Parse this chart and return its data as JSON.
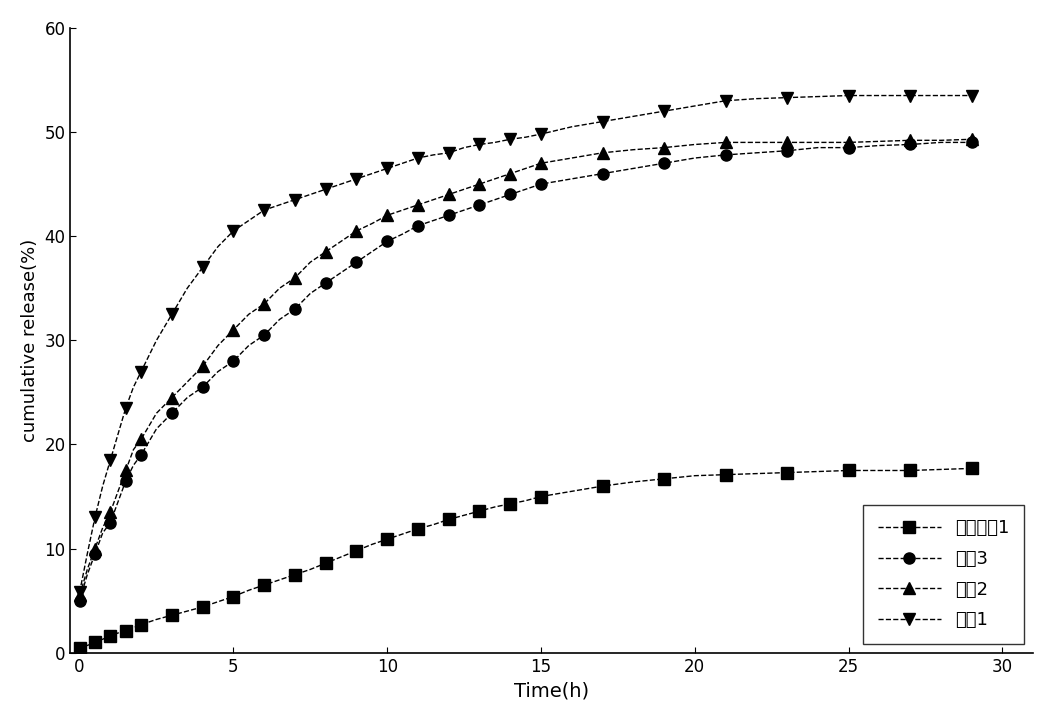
{
  "xlabel": "Time(h)",
  "ylabel": "cumulative release(%)",
  "xlim": [
    -0.3,
    31
  ],
  "ylim": [
    0,
    60
  ],
  "xticks": [
    0,
    5,
    10,
    15,
    20,
    25,
    30
  ],
  "yticks": [
    0,
    10,
    20,
    30,
    40,
    50,
    60
  ],
  "series": [
    {
      "label": "对比样品1",
      "marker": "s",
      "linestyle": "--",
      "color": "#000000",
      "x": [
        0.0,
        0.25,
        0.5,
        0.75,
        1.0,
        1.25,
        1.5,
        1.75,
        2.0,
        2.5,
        3.0,
        3.5,
        4.0,
        4.5,
        5.0,
        5.5,
        6.0,
        6.5,
        7.0,
        7.5,
        8.0,
        8.5,
        9.0,
        9.5,
        10.0,
        10.5,
        11.0,
        11.5,
        12.0,
        12.5,
        13.0,
        13.5,
        14.0,
        14.5,
        15.0,
        16.0,
        17.0,
        18.0,
        19.0,
        20.0,
        21.0,
        22.0,
        23.0,
        24.0,
        25.0,
        26.0,
        27.0,
        28.0,
        29.0
      ],
      "y": [
        0.5,
        0.7,
        1.0,
        1.3,
        1.6,
        1.9,
        2.1,
        2.4,
        2.7,
        3.2,
        3.6,
        4.0,
        4.4,
        4.9,
        5.4,
        6.0,
        6.5,
        7.0,
        7.5,
        8.0,
        8.6,
        9.2,
        9.8,
        10.4,
        10.9,
        11.4,
        11.9,
        12.3,
        12.8,
        13.2,
        13.6,
        14.0,
        14.3,
        14.6,
        15.0,
        15.5,
        16.0,
        16.4,
        16.7,
        17.0,
        17.1,
        17.2,
        17.3,
        17.4,
        17.5,
        17.5,
        17.5,
        17.6,
        17.7
      ]
    },
    {
      "label": "样品3",
      "marker": "o",
      "linestyle": "--",
      "color": "#000000",
      "x": [
        0.0,
        0.25,
        0.5,
        0.75,
        1.0,
        1.25,
        1.5,
        1.75,
        2.0,
        2.5,
        3.0,
        3.5,
        4.0,
        4.5,
        5.0,
        5.5,
        6.0,
        6.5,
        7.0,
        7.5,
        8.0,
        8.5,
        9.0,
        9.5,
        10.0,
        10.5,
        11.0,
        11.5,
        12.0,
        12.5,
        13.0,
        13.5,
        14.0,
        14.5,
        15.0,
        16.0,
        17.0,
        18.0,
        19.0,
        20.0,
        21.0,
        22.0,
        23.0,
        24.0,
        25.0,
        26.0,
        27.0,
        28.0,
        29.0
      ],
      "y": [
        5.0,
        7.5,
        9.5,
        11.5,
        12.5,
        14.5,
        16.5,
        18.0,
        19.0,
        21.5,
        23.0,
        24.5,
        25.5,
        27.0,
        28.0,
        29.5,
        30.5,
        32.0,
        33.0,
        34.5,
        35.5,
        36.5,
        37.5,
        38.5,
        39.5,
        40.2,
        41.0,
        41.5,
        42.0,
        42.5,
        43.0,
        43.5,
        44.0,
        44.5,
        45.0,
        45.5,
        46.0,
        46.5,
        47.0,
        47.5,
        47.8,
        48.0,
        48.2,
        48.5,
        48.5,
        48.7,
        48.8,
        49.0,
        49.0
      ]
    },
    {
      "label": "样品2",
      "marker": "^",
      "linestyle": "--",
      "color": "#000000",
      "x": [
        0.0,
        0.25,
        0.5,
        0.75,
        1.0,
        1.25,
        1.5,
        1.75,
        2.0,
        2.5,
        3.0,
        3.5,
        4.0,
        4.5,
        5.0,
        5.5,
        6.0,
        6.5,
        7.0,
        7.5,
        8.0,
        8.5,
        9.0,
        9.5,
        10.0,
        10.5,
        11.0,
        11.5,
        12.0,
        12.5,
        13.0,
        13.5,
        14.0,
        14.5,
        15.0,
        16.0,
        17.0,
        18.0,
        19.0,
        20.0,
        21.0,
        22.0,
        23.0,
        24.0,
        25.0,
        26.0,
        27.0,
        28.0,
        29.0
      ],
      "y": [
        5.5,
        8.0,
        10.0,
        12.0,
        13.5,
        15.5,
        17.5,
        19.5,
        20.5,
        23.0,
        24.5,
        26.0,
        27.5,
        29.5,
        31.0,
        32.5,
        33.5,
        35.0,
        36.0,
        37.5,
        38.5,
        39.5,
        40.5,
        41.2,
        42.0,
        42.5,
        43.0,
        43.5,
        44.0,
        44.5,
        45.0,
        45.5,
        46.0,
        46.5,
        47.0,
        47.5,
        48.0,
        48.3,
        48.5,
        48.8,
        49.0,
        49.0,
        49.0,
        49.0,
        49.0,
        49.1,
        49.2,
        49.2,
        49.3
      ]
    },
    {
      "label": "样品1",
      "marker": "v",
      "linestyle": "--",
      "color": "#000000",
      "x": [
        0.0,
        0.25,
        0.5,
        0.75,
        1.0,
        1.25,
        1.5,
        1.75,
        2.0,
        2.5,
        3.0,
        3.5,
        4.0,
        4.5,
        5.0,
        5.5,
        6.0,
        6.5,
        7.0,
        7.5,
        8.0,
        8.5,
        9.0,
        9.5,
        10.0,
        10.5,
        11.0,
        11.5,
        12.0,
        12.5,
        13.0,
        13.5,
        14.0,
        14.5,
        15.0,
        16.0,
        17.0,
        18.0,
        19.0,
        20.0,
        21.0,
        22.0,
        23.0,
        24.0,
        25.0,
        26.0,
        27.0,
        28.0,
        29.0
      ],
      "y": [
        5.8,
        9.5,
        13.0,
        16.0,
        18.5,
        21.0,
        23.5,
        25.5,
        27.0,
        30.0,
        32.5,
        35.0,
        37.0,
        39.0,
        40.5,
        41.5,
        42.5,
        43.0,
        43.5,
        44.0,
        44.5,
        45.0,
        45.5,
        46.0,
        46.5,
        47.0,
        47.5,
        47.8,
        48.0,
        48.5,
        48.8,
        49.0,
        49.3,
        49.5,
        49.8,
        50.5,
        51.0,
        51.5,
        52.0,
        52.5,
        53.0,
        53.2,
        53.3,
        53.4,
        53.5,
        53.5,
        53.5,
        53.5,
        53.5
      ]
    }
  ]
}
